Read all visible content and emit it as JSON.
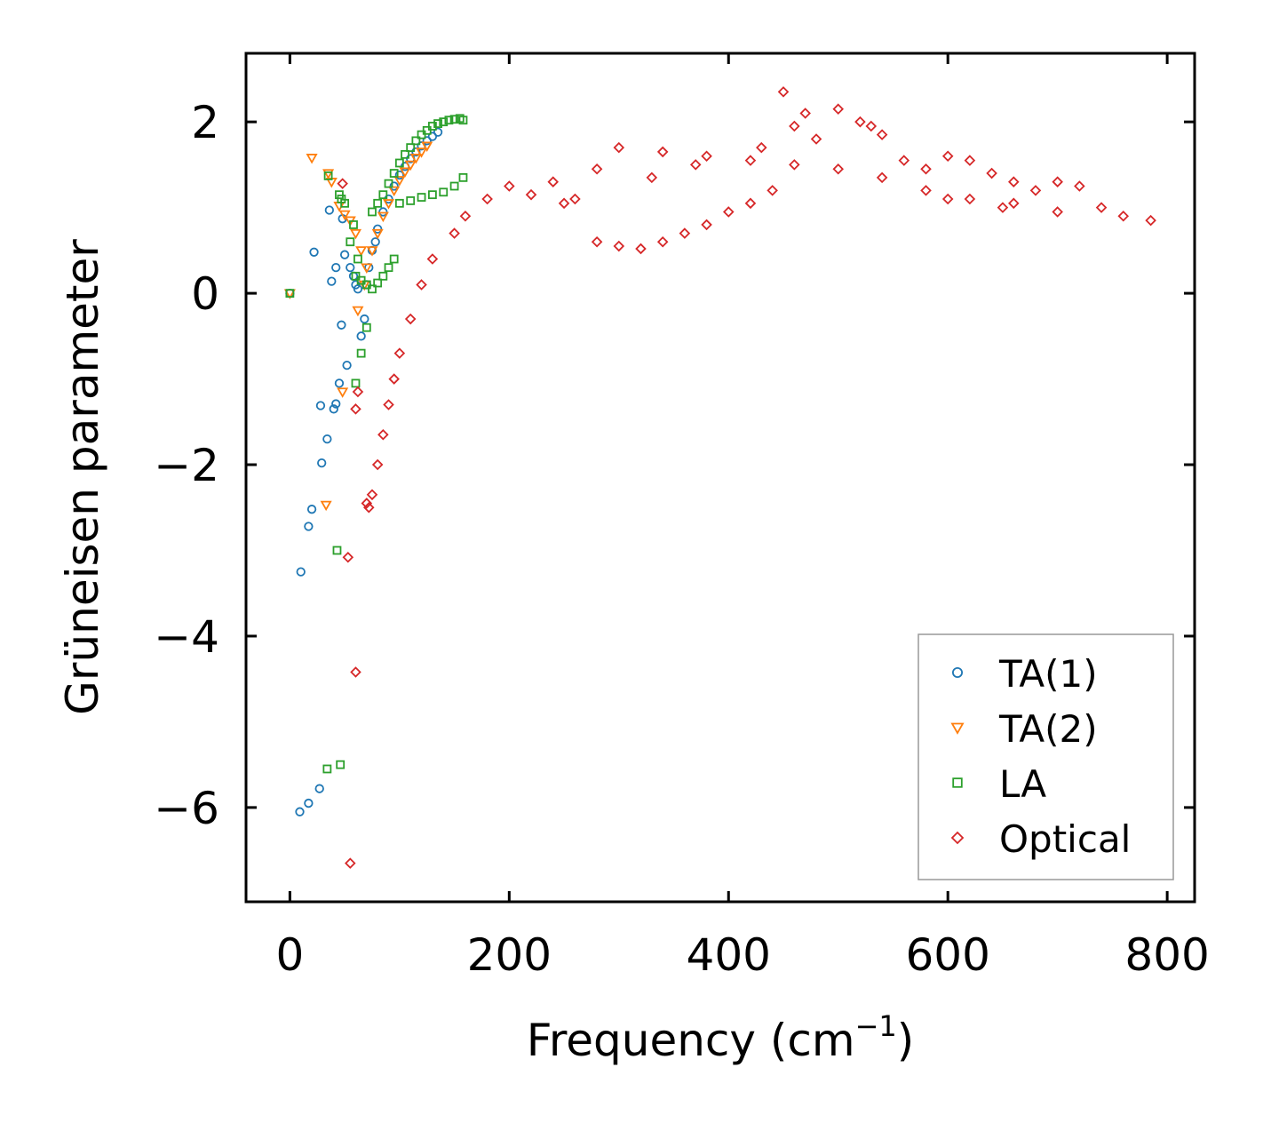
{
  "chart_data": {
    "type": "scatter",
    "title": "",
    "xlabel": "Frequency (cm",
    "xlabel_sup": "−1",
    "xlabel_suffix": ")",
    "ylabel": "Grüneisen parameter",
    "xlim": [
      -40,
      825
    ],
    "ylim": [
      -7.1,
      2.8
    ],
    "xticks": [
      0,
      200,
      400,
      600,
      800
    ],
    "xtick_labels": [
      "0",
      "200",
      "400",
      "600",
      "800"
    ],
    "yticks": [
      2,
      0,
      -2,
      -4,
      -6
    ],
    "ytick_labels": [
      "2",
      "0",
      "−2",
      "−4",
      "−6"
    ],
    "legend_position": "lower-right",
    "colors": {
      "ta1": "#1f77b4",
      "ta2": "#ff7f0e",
      "la": "#2ca02c",
      "optical": "#d62728"
    },
    "series": [
      {
        "name": "TA(1)",
        "marker": "circle",
        "color": "#1f77b4",
        "x": [
          0,
          10,
          17,
          20,
          22,
          28,
          29,
          34,
          36,
          38,
          40,
          42,
          42,
          45,
          47,
          48,
          50,
          52,
          55,
          58,
          60,
          62,
          65,
          68,
          70,
          72,
          75,
          78,
          80,
          85,
          90,
          95,
          100,
          105,
          110,
          115,
          120,
          125,
          130,
          135,
          9,
          17,
          27
        ],
        "y": [
          0,
          -3.25,
          -2.72,
          -2.52,
          0.48,
          -1.31,
          -1.98,
          -1.7,
          0.97,
          0.14,
          -1.35,
          0.3,
          -1.29,
          -1.05,
          -0.37,
          0.87,
          0.45,
          -0.84,
          0.3,
          0.2,
          0.1,
          0.05,
          -0.5,
          -0.3,
          0.1,
          0.3,
          0.5,
          0.6,
          0.75,
          0.95,
          1.1,
          1.25,
          1.38,
          1.48,
          1.57,
          1.65,
          1.72,
          1.78,
          1.83,
          1.88,
          -6.05,
          -5.95,
          -5.78
        ]
      },
      {
        "name": "TA(2)",
        "marker": "triangle-down",
        "color": "#ff7f0e",
        "x": [
          0,
          20,
          35,
          38,
          45,
          50,
          55,
          60,
          62,
          65,
          68,
          70,
          75,
          80,
          85,
          90,
          95,
          100,
          105,
          110,
          115,
          120,
          125,
          48,
          33
        ],
        "y": [
          0,
          1.58,
          1.4,
          1.3,
          1.02,
          0.92,
          0.85,
          0.7,
          -0.2,
          0.5,
          0.1,
          0.3,
          0.5,
          0.7,
          0.9,
          1.05,
          1.2,
          1.32,
          1.42,
          1.5,
          1.58,
          1.65,
          1.72,
          -1.15,
          -2.47
        ]
      },
      {
        "name": "LA",
        "marker": "square",
        "color": "#2ca02c",
        "x": [
          0,
          35,
          45,
          47,
          50,
          55,
          58,
          60,
          62,
          65,
          70,
          75,
          80,
          85,
          90,
          95,
          100,
          105,
          110,
          115,
          120,
          125,
          130,
          135,
          140,
          145,
          150,
          155,
          158,
          100,
          110,
          120,
          130,
          140,
          150,
          158,
          60,
          65,
          70,
          75,
          80,
          85,
          90,
          95,
          43,
          34,
          46
        ],
        "y": [
          0,
          1.37,
          1.15,
          1.1,
          1.05,
          0.6,
          0.8,
          -1.05,
          0.4,
          -0.7,
          -0.4,
          0.95,
          1.05,
          1.15,
          1.28,
          1.4,
          1.52,
          1.62,
          1.7,
          1.78,
          1.85,
          1.9,
          1.95,
          1.98,
          2.0,
          2.02,
          2.03,
          2.04,
          2.02,
          1.05,
          1.08,
          1.12,
          1.15,
          1.18,
          1.25,
          1.35,
          0.2,
          0.15,
          0.1,
          0.05,
          0.12,
          0.2,
          0.3,
          0.4,
          -3.0,
          -5.55,
          -5.5
        ]
      },
      {
        "name": "Optical",
        "marker": "diamond",
        "color": "#d62728",
        "x": [
          48,
          53,
          55,
          60,
          60,
          62,
          70,
          72,
          75,
          80,
          85,
          90,
          95,
          100,
          110,
          120,
          130,
          150,
          160,
          180,
          200,
          220,
          250,
          280,
          300,
          320,
          340,
          360,
          380,
          400,
          420,
          440,
          450,
          460,
          480,
          500,
          520,
          540,
          560,
          580,
          600,
          620,
          640,
          660,
          680,
          700,
          720,
          740,
          760,
          785,
          300,
          340,
          380,
          420,
          460,
          500,
          540,
          580,
          620,
          660,
          700,
          240,
          260,
          280,
          330,
          370,
          430,
          470,
          530,
          600,
          650
        ],
        "y": [
          1.28,
          -3.08,
          -6.65,
          -4.42,
          -1.35,
          -1.15,
          -2.45,
          -2.5,
          -2.35,
          -2.0,
          -1.65,
          -1.3,
          -1.0,
          -0.7,
          -0.3,
          0.1,
          0.4,
          0.7,
          0.9,
          1.1,
          1.25,
          1.15,
          1.05,
          0.6,
          0.55,
          0.52,
          0.6,
          0.7,
          0.8,
          0.95,
          1.05,
          1.2,
          2.35,
          1.95,
          1.8,
          2.15,
          2.0,
          1.85,
          1.55,
          1.45,
          1.6,
          1.55,
          1.4,
          1.3,
          1.2,
          1.3,
          1.25,
          1.0,
          0.9,
          0.85,
          1.7,
          1.65,
          1.6,
          1.55,
          1.5,
          1.45,
          1.35,
          1.2,
          1.1,
          1.05,
          0.95,
          1.3,
          1.1,
          1.45,
          1.35,
          1.5,
          1.7,
          2.1,
          1.95,
          1.1,
          1.0
        ]
      }
    ]
  }
}
